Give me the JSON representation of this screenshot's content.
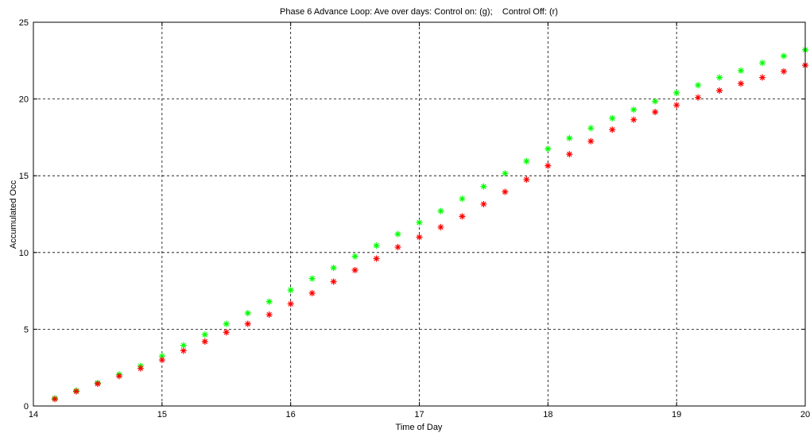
{
  "chart_data": {
    "type": "scatter",
    "title": "Phase 6 Advance Loop: Ave over days: Control on: (g);    Control Off: (r)",
    "xlabel": "Time of Day",
    "ylabel": "Accumulated Occ",
    "xlim": [
      14,
      20
    ],
    "ylim": [
      0,
      25
    ],
    "xticks": [
      14,
      15,
      16,
      17,
      18,
      19,
      20
    ],
    "yticks": [
      0,
      5,
      10,
      15,
      20,
      25
    ],
    "grid": true,
    "marker": "*",
    "x": [
      14.1667,
      14.3333,
      14.5,
      14.6667,
      14.8333,
      15.0,
      15.1667,
      15.3333,
      15.5,
      15.6667,
      15.8333,
      16.0,
      16.1667,
      16.3333,
      16.5,
      16.6667,
      16.8333,
      17.0,
      17.1667,
      17.3333,
      17.5,
      17.6667,
      17.8333,
      18.0,
      18.1667,
      18.3333,
      18.5,
      18.6667,
      18.8333,
      19.0,
      19.1667,
      19.3333,
      19.5,
      19.6667,
      19.8333,
      20.0
    ],
    "series": [
      {
        "color": "#00ff00",
        "values": [
          0.5,
          1.0,
          1.5,
          2.05,
          2.6,
          3.25,
          3.95,
          4.65,
          5.35,
          6.05,
          6.8,
          7.55,
          8.3,
          9.0,
          9.75,
          10.45,
          11.2,
          11.95,
          12.7,
          13.5,
          14.3,
          15.15,
          15.95,
          16.75,
          17.45,
          18.1,
          18.75,
          19.3,
          19.85,
          20.4,
          20.9,
          21.4,
          21.85,
          22.35,
          22.8,
          23.2
        ]
      },
      {
        "color": "#ff0000",
        "values": [
          0.45,
          0.95,
          1.45,
          1.95,
          2.45,
          3.0,
          3.6,
          4.2,
          4.8,
          5.35,
          5.95,
          6.65,
          7.35,
          8.1,
          8.85,
          9.6,
          10.35,
          11.0,
          11.65,
          12.35,
          13.15,
          13.95,
          14.75,
          15.65,
          16.4,
          17.25,
          18.0,
          18.65,
          19.15,
          19.6,
          20.1,
          20.55,
          21.0,
          21.4,
          21.8,
          22.2
        ]
      }
    ]
  }
}
